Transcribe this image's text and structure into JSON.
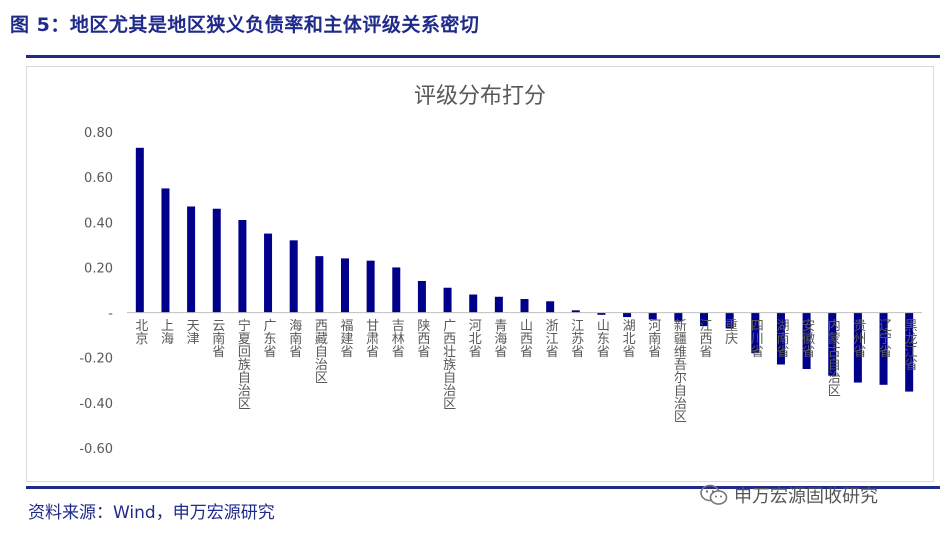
{
  "figure_title": "图 5：地区尤其是地区狭义负债率和主体评级关系密切",
  "source_text": "资料来源：Wind，申万宏源研究",
  "watermark_text": "申万宏源固收研究",
  "watermark_icon": "wechat-icon",
  "colors": {
    "bar": "#00008B",
    "title": "#1f2a8a",
    "axis_text": "#595959",
    "grid": "#d9d9d9"
  },
  "chart_data": {
    "type": "bar",
    "title": "评级分布打分",
    "categories": [
      "北京",
      "上海",
      "天津",
      "云南省",
      "宁夏回族自治区",
      "广东省",
      "海南省",
      "西藏自治区",
      "福建省",
      "甘肃省",
      "吉林省",
      "陕西省",
      "广西壮族自治区",
      "河北省",
      "青海省",
      "山西省",
      "浙江省",
      "江苏省",
      "山东省",
      "湖北省",
      "河南省",
      "新疆维吾尔自治区",
      "江西省",
      "重庆",
      "四川省",
      "湖南省",
      "安徽省",
      "内蒙古自治区",
      "贵州省",
      "辽宁省",
      "黑龙江省"
    ],
    "values": [
      0.73,
      0.55,
      0.47,
      0.46,
      0.41,
      0.35,
      0.32,
      0.25,
      0.24,
      0.23,
      0.2,
      0.14,
      0.11,
      0.08,
      0.07,
      0.06,
      0.05,
      0.01,
      -0.01,
      -0.02,
      -0.03,
      -0.04,
      -0.06,
      -0.07,
      -0.18,
      -0.23,
      -0.25,
      -0.28,
      -0.31,
      -0.32,
      -0.35
    ],
    "ylim": [
      -0.6,
      0.8
    ],
    "yticks": [
      -0.6,
      -0.4,
      -0.2,
      0,
      0.2,
      0.4,
      0.6,
      0.8
    ],
    "ytick_labels": [
      "-0.60",
      "-0.40",
      "-0.20",
      "-",
      "0.20",
      "0.40",
      "0.60",
      "0.80"
    ],
    "grid": false,
    "xlabel": "",
    "ylabel": ""
  }
}
